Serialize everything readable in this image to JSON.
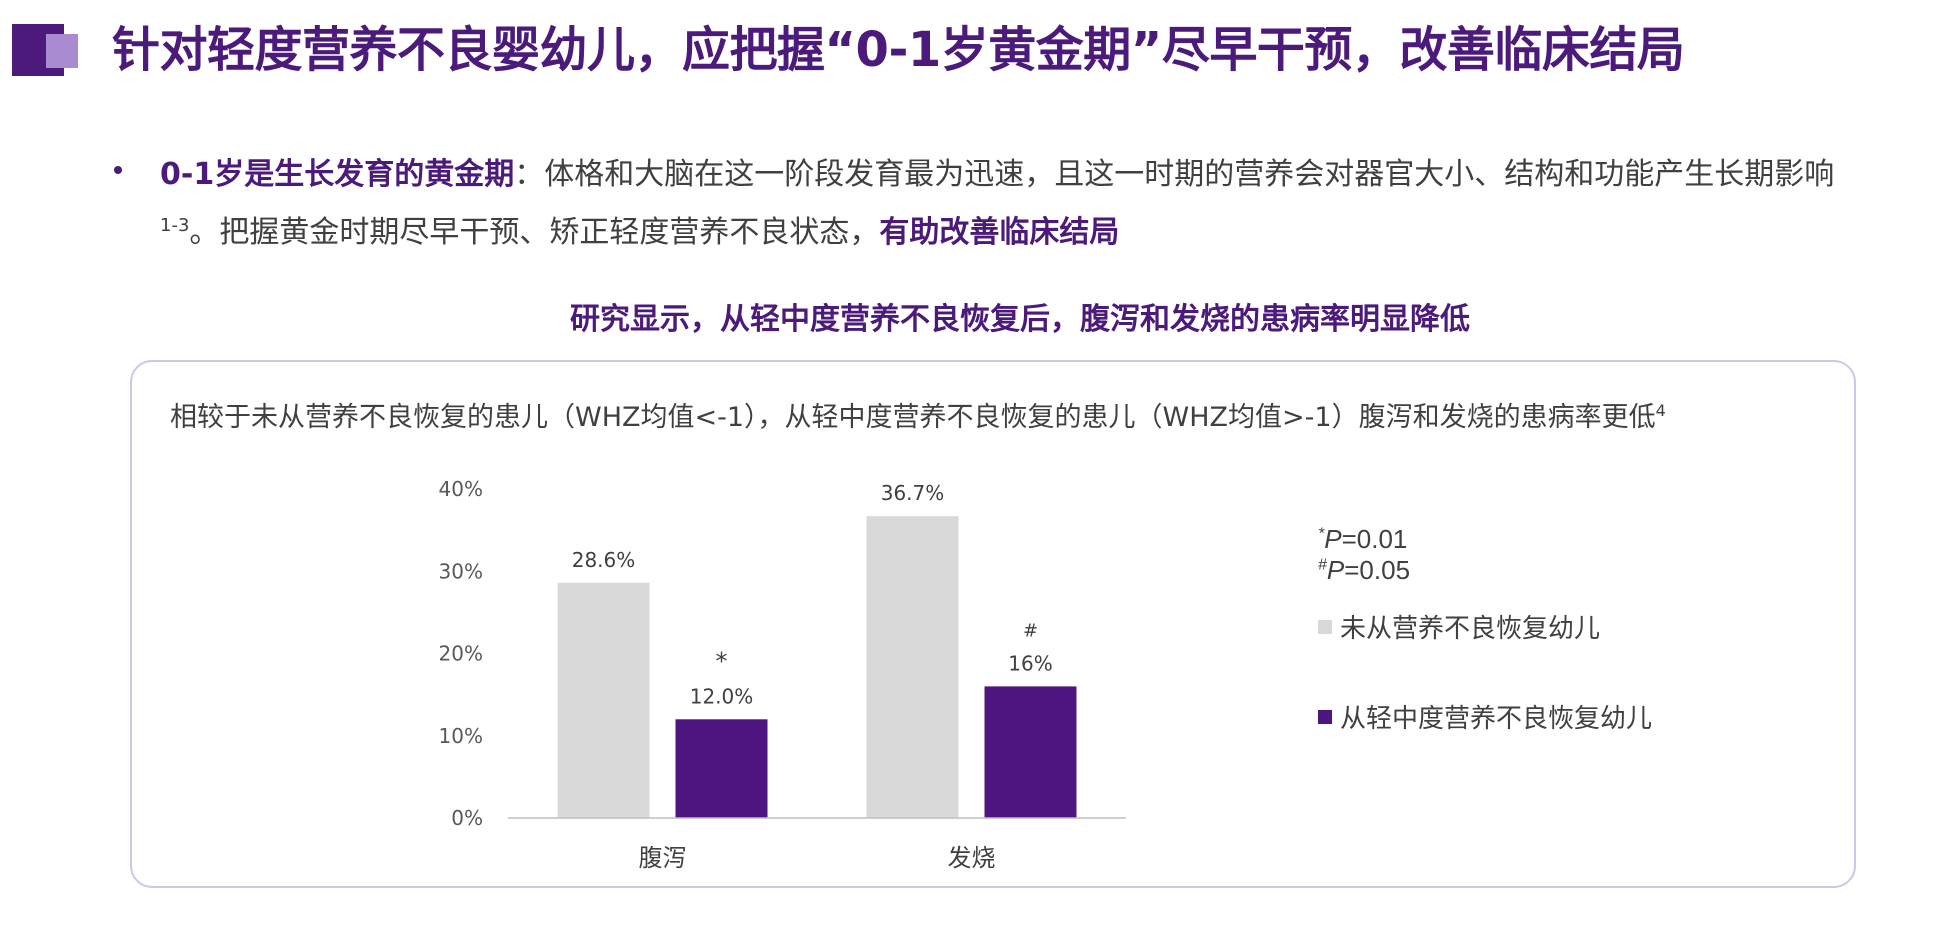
{
  "header": {
    "title": "针对轻度营养不良婴幼儿，应把握“0-1岁黄金期”尽早干预，改善临床结局"
  },
  "intro": {
    "lead_highlight": "0-1岁是生长发育的黄金期",
    "text_a": "：体格和大脑在这一阶段发育最为迅速，且这一时期的营养会对器官大小、结构和功能产生长期影响",
    "ref_a": "1-3",
    "text_b": "。把握黄金时期尽早干预、矫正轻度营养不良状态，",
    "tail_highlight": "有助改善临床结局"
  },
  "section": {
    "subtitle": "研究显示，从轻中度营养不良恢复后，腹泻和发烧的患病率明显降低"
  },
  "panel": {
    "description": "相较于未从营养不良恢复的患儿（WHZ均值<-1），从轻中度营养不良恢复的患儿（WHZ均值>-1）腹泻和发烧的患病率更低",
    "description_ref": "4"
  },
  "notes": {
    "p1_symbol": "*",
    "p1_letter": "P",
    "p1_value": "=0.01",
    "p2_symbol": "#",
    "p2_letter": "P",
    "p2_value": "=0.05"
  },
  "colors": {
    "primary": "#4b1a7a",
    "accent_light": "#a98bd1",
    "bar_grey": "#d9d9d9",
    "bar_purple": "#4d1580",
    "panel_border": "#cfc5e6"
  },
  "chart_data": {
    "type": "bar",
    "categories": [
      "腹泻",
      "发烧"
    ],
    "series": [
      {
        "name": "未从营养不良恢复幼儿",
        "values": [
          28.6,
          36.7
        ],
        "labels": [
          "28.6%",
          "36.7%"
        ],
        "markers": [
          "",
          ""
        ],
        "color": "#d9d9d9"
      },
      {
        "name": "从轻中度营养不良恢复幼儿",
        "values": [
          12.0,
          16.0
        ],
        "labels": [
          "12.0%",
          "16%"
        ],
        "markers": [
          "*",
          "#"
        ],
        "color": "#4d1580"
      }
    ],
    "yticks": [
      {
        "value": 0,
        "label": "0%"
      },
      {
        "value": 10,
        "label": "10%"
      },
      {
        "value": 20,
        "label": "20%"
      },
      {
        "value": 30,
        "label": "30%"
      },
      {
        "value": 40,
        "label": "40%"
      }
    ],
    "ylim": [
      0,
      40
    ],
    "grid": false,
    "legend_position": "right"
  }
}
